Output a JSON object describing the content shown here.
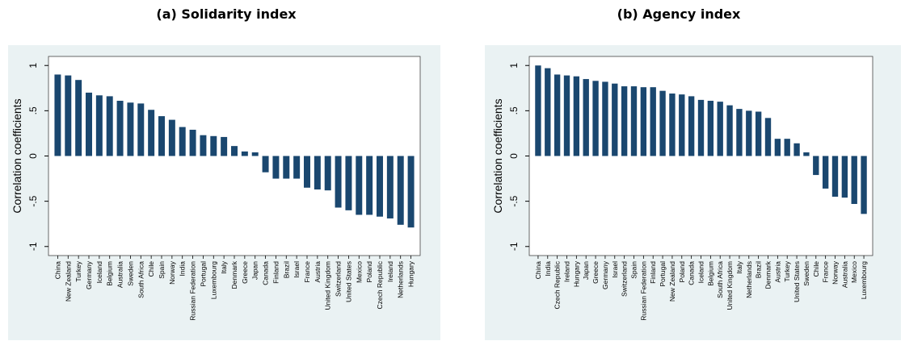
{
  "chart_data": [
    {
      "type": "bar",
      "title": "(a) Solidarity index",
      "ylabel": "Correlation coefficients",
      "ylim": [
        -1.1,
        1.1
      ],
      "yticks": [
        1,
        0.5,
        0,
        -0.5,
        -1
      ],
      "ytick_labels": [
        "1",
        ".5",
        "0",
        "-.5",
        "-1"
      ],
      "grid": false,
      "bar_color": "#1a476f",
      "background_outer": "#eaf2f3",
      "background_inner": "#ffffff",
      "categories": [
        "China",
        "New Zealand",
        "Turkey",
        "Germany",
        "Iceland",
        "Belgium",
        "Australia",
        "Sweden",
        "South Africa",
        "Chile",
        "Spain",
        "Norway",
        "India",
        "Russian Federation",
        "Portugal",
        "Luxembourg",
        "Italy",
        "Denmark",
        "Greece",
        "Japan",
        "Canada",
        "Finland",
        "Brazil",
        "Israel",
        "France",
        "Austria",
        "United Kingdom",
        "Switzerland",
        "United States",
        "Mexico",
        "Poland",
        "Czech Republic",
        "Ireland",
        "Netherlands",
        "Hungary"
      ],
      "values": [
        0.9,
        0.89,
        0.84,
        0.7,
        0.67,
        0.66,
        0.61,
        0.59,
        0.58,
        0.51,
        0.44,
        0.4,
        0.32,
        0.29,
        0.23,
        0.22,
        0.21,
        0.11,
        0.05,
        0.04,
        -0.18,
        -0.25,
        -0.25,
        -0.25,
        -0.35,
        -0.37,
        -0.38,
        -0.57,
        -0.6,
        -0.65,
        -0.65,
        -0.67,
        -0.69,
        -0.76,
        -0.79
      ]
    },
    {
      "type": "bar",
      "title": "(b) Agency index",
      "ylabel": "Correlation coefficients",
      "ylim": [
        -1.1,
        1.1
      ],
      "yticks": [
        1,
        0.5,
        0,
        -0.5,
        -1
      ],
      "ytick_labels": [
        "1",
        ".5",
        "0",
        "-.5",
        "-1"
      ],
      "grid": false,
      "bar_color": "#1a476f",
      "background_outer": "#eaf2f3",
      "background_inner": "#ffffff",
      "categories": [
        "China",
        "India",
        "Czech Republic",
        "Ireland",
        "Hungary",
        "Japan",
        "Greece",
        "Germany",
        "Israel",
        "Switzerland",
        "Spain",
        "Russian Federation",
        "Finland",
        "Portugal",
        "New Zealand",
        "Poland",
        "Canada",
        "Iceland",
        "Belgium",
        "South Africa",
        "United Kingdom",
        "Italy",
        "Netherlands",
        "Brazil",
        "Denmark",
        "Austria",
        "Turkey",
        "United States",
        "Sweden",
        "Chile",
        "France",
        "Norway",
        "Australia",
        "Mexico",
        "Luxembourg"
      ],
      "values": [
        1.0,
        0.97,
        0.9,
        0.89,
        0.88,
        0.85,
        0.83,
        0.82,
        0.8,
        0.77,
        0.77,
        0.76,
        0.76,
        0.72,
        0.69,
        0.68,
        0.66,
        0.62,
        0.61,
        0.6,
        0.56,
        0.52,
        0.5,
        0.49,
        0.42,
        0.19,
        0.19,
        0.14,
        0.04,
        -0.21,
        -0.36,
        -0.45,
        -0.46,
        -0.53,
        -0.64
      ]
    }
  ]
}
